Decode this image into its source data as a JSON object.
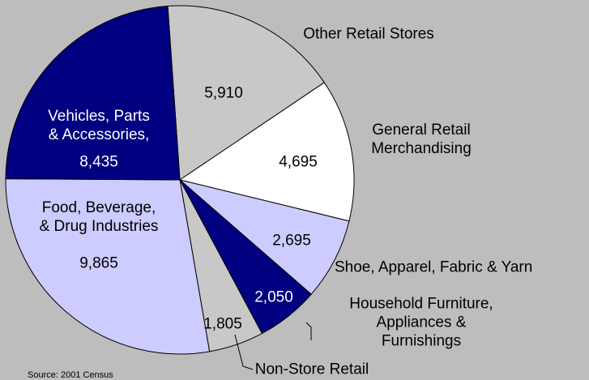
{
  "chart_data": {
    "type": "pie",
    "categories": [
      "Other Retail Stores",
      "General Retail\nMerchandising",
      "Shoe, Apparel, Fabric & Yarn",
      "Household Furniture,\nAppliances & Furnishings",
      "Non-Store Retail",
      "Food, Beverage,\n& Drug Industries",
      "Vehicles, Parts\n& Accessories,"
    ],
    "values": [
      5910,
      4695,
      2695,
      2050,
      1805,
      9865,
      8435
    ],
    "value_labels": [
      "5,910",
      "4,695",
      "2,695",
      "2,050",
      "1,805",
      "9,865",
      "8,435"
    ],
    "colors": [
      "#c8c8c8",
      "#ffffff",
      "#ccccff",
      "#000080",
      "#c8c8c8",
      "#ccccff",
      "#000080"
    ],
    "source": "Source: 2001 Census"
  }
}
